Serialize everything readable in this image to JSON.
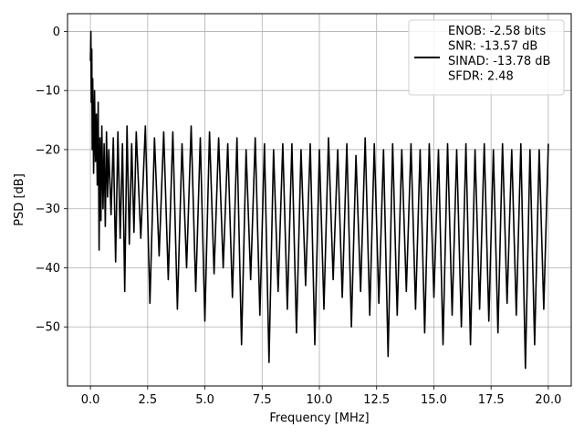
{
  "chart_data": {
    "type": "line",
    "title": "",
    "xlabel": "Frequency [MHz]",
    "ylabel": "PSD [dB]",
    "xlim": [
      -1.0,
      21.0
    ],
    "ylim": [
      -60.0,
      3.0
    ],
    "xticks": [
      0.0,
      2.5,
      5.0,
      7.5,
      10.0,
      12.5,
      15.0,
      17.5,
      20.0
    ],
    "xtick_labels": [
      "0.0",
      "2.5",
      "5.0",
      "7.5",
      "10.0",
      "12.5",
      "15.0",
      "17.5",
      "20.0"
    ],
    "yticks": [
      0,
      -10,
      -20,
      -30,
      -40,
      -50
    ],
    "ytick_labels": [
      "0",
      "−10",
      "−20",
      "−30",
      "−40",
      "−50"
    ],
    "grid": true,
    "legend_position": "top-right",
    "series": [
      {
        "name": "ENOB: -2.58 bits\nSNR: -13.57 dB\nSINAD: -13.78 dB\nSFDR: 2.48",
        "color": "#000000",
        "x": [
          0.0,
          0.02,
          0.04,
          0.06,
          0.08,
          0.1,
          0.14,
          0.18,
          0.22,
          0.26,
          0.3,
          0.34,
          0.38,
          0.42,
          0.46,
          0.5,
          0.55,
          0.6,
          0.65,
          0.7,
          0.75,
          0.8,
          0.9,
          1.0,
          1.1,
          1.2,
          1.3,
          1.4,
          1.5,
          1.6,
          1.7,
          1.8,
          1.9,
          2.0,
          2.2,
          2.4,
          2.6,
          2.8,
          3.0,
          3.2,
          3.4,
          3.6,
          3.8,
          4.0,
          4.2,
          4.4,
          4.6,
          4.8,
          5.0,
          5.2,
          5.4,
          5.6,
          5.8,
          6.0,
          6.2,
          6.4,
          6.6,
          6.8,
          7.0,
          7.2,
          7.4,
          7.6,
          7.8,
          8.0,
          8.2,
          8.4,
          8.6,
          8.8,
          9.0,
          9.2,
          9.4,
          9.6,
          9.8,
          10.0,
          10.2,
          10.4,
          10.6,
          10.8,
          11.0,
          11.2,
          11.4,
          11.6,
          11.8,
          12.0,
          12.2,
          12.4,
          12.6,
          12.8,
          13.0,
          13.2,
          13.4,
          13.6,
          13.8,
          14.0,
          14.2,
          14.4,
          14.6,
          14.8,
          15.0,
          15.2,
          15.4,
          15.6,
          15.8,
          16.0,
          16.2,
          16.4,
          16.6,
          16.8,
          17.0,
          17.2,
          17.4,
          17.6,
          17.8,
          18.0,
          18.2,
          18.4,
          18.6,
          18.8,
          19.0,
          19.2,
          19.4,
          19.6,
          19.8,
          20.0
        ],
        "y": [
          -5,
          0,
          -12,
          -3,
          -20,
          -8,
          -24,
          -10,
          -22,
          -14,
          -26,
          -12,
          -37,
          -18,
          -32,
          -16,
          -30,
          -19,
          -33,
          -17,
          -28,
          -20,
          -31,
          -18,
          -39,
          -17,
          -35,
          -19,
          -44,
          -16,
          -36,
          -19,
          -34,
          -17,
          -35,
          -16,
          -46,
          -18,
          -38,
          -17,
          -42,
          -17,
          -47,
          -19,
          -40,
          -16,
          -44,
          -18,
          -49,
          -17,
          -41,
          -18,
          -40,
          -19,
          -45,
          -18,
          -53,
          -20,
          -42,
          -18,
          -48,
          -19,
          -56,
          -20,
          -44,
          -19,
          -47,
          -19,
          -51,
          -20,
          -43,
          -19,
          -53,
          -20,
          -47,
          -18,
          -42,
          -20,
          -45,
          -19,
          -50,
          -21,
          -44,
          -18,
          -48,
          -19,
          -46,
          -20,
          -55,
          -19,
          -48,
          -20,
          -44,
          -19,
          -47,
          -20,
          -51,
          -19,
          -45,
          -20,
          -53,
          -19,
          -48,
          -20,
          -50,
          -19,
          -53,
          -20,
          -47,
          -19,
          -49,
          -20,
          -51,
          -19,
          -46,
          -20,
          -48,
          -19,
          -57,
          -20,
          -53,
          -20,
          -47,
          -19
        ]
      }
    ]
  }
}
